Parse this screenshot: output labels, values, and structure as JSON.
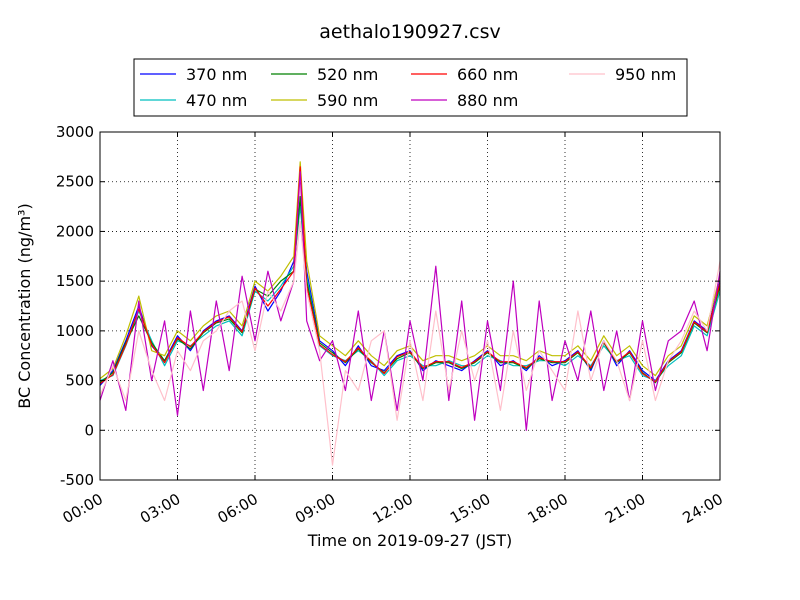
{
  "chart_data": {
    "type": "line",
    "title": "aethalo190927.csv",
    "xlabel": "Time on 2019-09-27 (JST)",
    "ylabel": "BC Concentration (ng/m³)",
    "xlim": [
      "00:00",
      "24:00"
    ],
    "ylim": [
      -500,
      3000
    ],
    "x_ticks": [
      "00:00",
      "03:00",
      "06:00",
      "09:00",
      "12:00",
      "15:00",
      "18:00",
      "21:00",
      "24:00"
    ],
    "y_ticks": [
      -500,
      0,
      500,
      1000,
      1500,
      2000,
      2500,
      3000
    ],
    "grid": true,
    "legend_position": "top-center",
    "x_hours": [
      0.0,
      0.5,
      1.0,
      1.5,
      2.0,
      2.5,
      3.0,
      3.5,
      4.0,
      4.5,
      5.0,
      5.5,
      6.0,
      6.5,
      7.0,
      7.5,
      7.75,
      8.0,
      8.5,
      9.0,
      9.5,
      10.0,
      10.5,
      11.0,
      11.5,
      12.0,
      12.5,
      13.0,
      13.5,
      14.0,
      14.5,
      15.0,
      15.5,
      16.0,
      16.5,
      17.0,
      17.5,
      18.0,
      18.5,
      19.0,
      19.5,
      20.0,
      20.5,
      21.0,
      21.5,
      22.0,
      22.5,
      23.0,
      23.5,
      24.0
    ],
    "series": [
      {
        "name": "370 nm",
        "color": "#0000ff",
        "values": [
          450,
          600,
          900,
          1250,
          850,
          700,
          950,
          800,
          1000,
          1100,
          1150,
          1000,
          1450,
          1200,
          1400,
          1700,
          2300,
          1600,
          900,
          800,
          650,
          850,
          650,
          600,
          750,
          800,
          600,
          700,
          650,
          600,
          700,
          800,
          650,
          700,
          600,
          750,
          650,
          700,
          800,
          600,
          900,
          650,
          800,
          600,
          500,
          700,
          800,
          1100,
          1000,
          1500
        ]
      },
      {
        "name": "470 nm",
        "color": "#00bfbf",
        "values": [
          500,
          550,
          850,
          1200,
          900,
          650,
          900,
          850,
          950,
          1050,
          1100,
          950,
          1400,
          1300,
          1450,
          1650,
          2250,
          1550,
          850,
          750,
          700,
          800,
          700,
          550,
          700,
          750,
          650,
          650,
          700,
          650,
          650,
          750,
          700,
          650,
          650,
          700,
          700,
          650,
          750,
          650,
          850,
          700,
          750,
          550,
          500,
          650,
          750,
          1050,
          950,
          1400
        ]
      },
      {
        "name": "520 nm",
        "color": "#008000",
        "values": [
          480,
          580,
          880,
          1150,
          880,
          700,
          920,
          820,
          980,
          1080,
          1120,
          980,
          1420,
          1350,
          1500,
          1600,
          2350,
          1500,
          880,
          780,
          680,
          820,
          680,
          580,
          720,
          780,
          620,
          680,
          680,
          620,
          680,
          780,
          680,
          680,
          620,
          720,
          680,
          680,
          780,
          620,
          880,
          680,
          780,
          580,
          480,
          680,
          780,
          1080,
          980,
          1450
        ]
      },
      {
        "name": "590 nm",
        "color": "#bfbf00",
        "values": [
          520,
          620,
          950,
          1350,
          800,
          750,
          1000,
          900,
          1050,
          1150,
          1200,
          1050,
          1500,
          1400,
          1550,
          1750,
          2700,
          1700,
          950,
          850,
          750,
          900,
          750,
          650,
          800,
          850,
          700,
          750,
          750,
          700,
          750,
          850,
          750,
          750,
          700,
          800,
          750,
          750,
          850,
          700,
          950,
          750,
          850,
          650,
          550,
          750,
          850,
          1150,
          1050,
          1550
        ]
      },
      {
        "name": "660 nm",
        "color": "#ff0000",
        "values": [
          470,
          560,
          860,
          1220,
          860,
          680,
          930,
          840,
          990,
          1090,
          1140,
          990,
          1430,
          1250,
          1420,
          1600,
          2650,
          1450,
          860,
          760,
          690,
          830,
          690,
          570,
          740,
          790,
          630,
          690,
          690,
          630,
          690,
          790,
          690,
          690,
          630,
          730,
          690,
          690,
          790,
          630,
          890,
          690,
          790,
          570,
          490,
          690,
          790,
          1090,
          990,
          1480
        ]
      },
      {
        "name": "880 nm",
        "color": "#bf00bf",
        "values": [
          300,
          700,
          200,
          1300,
          500,
          1100,
          150,
          1200,
          400,
          1300,
          600,
          1550,
          900,
          1600,
          1100,
          1500,
          2600,
          1100,
          700,
          900,
          400,
          1200,
          300,
          1000,
          200,
          1100,
          500,
          1650,
          300,
          1300,
          100,
          1100,
          400,
          1500,
          0,
          1300,
          300,
          900,
          500,
          1200,
          400,
          1000,
          300,
          1100,
          400,
          900,
          1000,
          1300,
          800,
          1600
        ]
      },
      {
        "name": "950 nm",
        "color": "#ffc0cb",
        "values": [
          350,
          650,
          300,
          1000,
          600,
          300,
          800,
          600,
          900,
          1000,
          1200,
          1300,
          800,
          1400,
          1200,
          1500,
          2100,
          1400,
          800,
          -350,
          600,
          400,
          900,
          1000,
          100,
          900,
          300,
          1200,
          400,
          1000,
          500,
          900,
          200,
          1000,
          400,
          800,
          600,
          400,
          1200,
          500,
          900,
          700,
          300,
          900,
          300,
          700,
          900,
          1200,
          1000,
          1700
        ]
      }
    ]
  }
}
